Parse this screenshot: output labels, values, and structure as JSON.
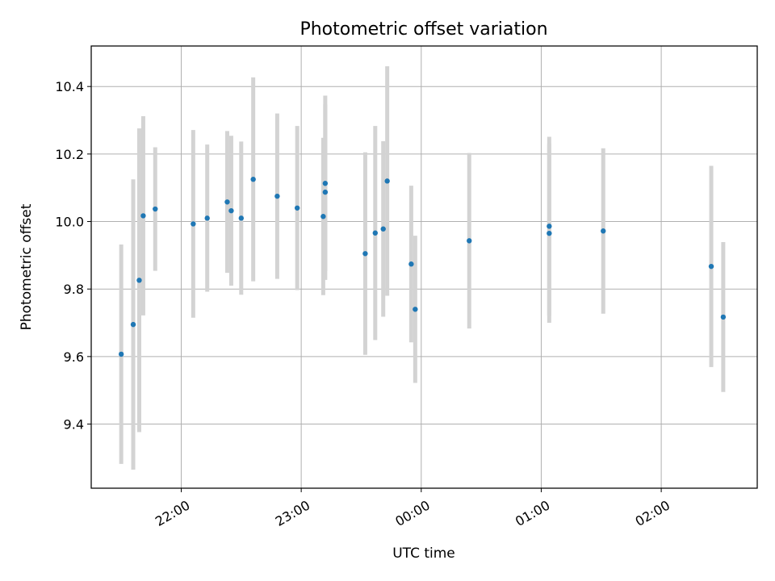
{
  "chart_data": {
    "type": "scatter",
    "title": "Photometric offset variation",
    "xlabel": "UTC time",
    "ylabel": "Photometric offset",
    "x_axis": "time",
    "xlim": [
      "21:15",
      "02:48"
    ],
    "ylim": [
      9.21,
      10.52
    ],
    "xticks": [
      "22:00",
      "23:00",
      "00:00",
      "01:00",
      "02:00"
    ],
    "yticks": [
      "9.4",
      "9.6",
      "9.8",
      "10.0",
      "10.2",
      "10.4"
    ],
    "grid": true,
    "colors": {
      "point": "#1f77b4",
      "errorbar": "#d3d3d3",
      "grid": "#b0b0b0"
    },
    "points": [
      {
        "x": "21:30",
        "y": 9.607,
        "err": 0.325
      },
      {
        "x": "21:36",
        "y": 9.695,
        "err": 0.43
      },
      {
        "x": "21:39",
        "y": 9.826,
        "err": 0.45
      },
      {
        "x": "21:41",
        "y": 10.017,
        "err": 0.295
      },
      {
        "x": "21:47",
        "y": 10.037,
        "err": 0.183
      },
      {
        "x": "22:06",
        "y": 9.993,
        "err": 0.278
      },
      {
        "x": "22:13",
        "y": 10.01,
        "err": 0.218
      },
      {
        "x": "22:23",
        "y": 10.058,
        "err": 0.21
      },
      {
        "x": "22:25",
        "y": 10.032,
        "err": 0.222
      },
      {
        "x": "22:30",
        "y": 10.01,
        "err": 0.227
      },
      {
        "x": "22:36",
        "y": 10.125,
        "err": 0.302
      },
      {
        "x": "22:48",
        "y": 10.075,
        "err": 0.245
      },
      {
        "x": "22:58",
        "y": 10.04,
        "err": 0.243
      },
      {
        "x": "23:11",
        "y": 10.015,
        "err": 0.233
      },
      {
        "x": "23:12",
        "y": 10.087,
        "err": 0.26
      },
      {
        "x": "23:12",
        "y": 10.113,
        "err": 0.26
      },
      {
        "x": "23:32",
        "y": 9.905,
        "err": 0.3
      },
      {
        "x": "23:37",
        "y": 9.966,
        "err": 0.317
      },
      {
        "x": "23:41",
        "y": 9.978,
        "err": 0.26
      },
      {
        "x": "23:43",
        "y": 10.12,
        "err": 0.34
      },
      {
        "x": "23:55",
        "y": 9.874,
        "err": 0.232
      },
      {
        "x": "23:57",
        "y": 9.74,
        "err": 0.218
      },
      {
        "x": "00:24",
        "y": 9.943,
        "err": 0.26
      },
      {
        "x": "01:04",
        "y": 9.986,
        "err": 0.265
      },
      {
        "x": "01:04",
        "y": 9.965,
        "err": 0.265
      },
      {
        "x": "01:31",
        "y": 9.972,
        "err": 0.245
      },
      {
        "x": "02:25",
        "y": 9.867,
        "err": 0.298
      },
      {
        "x": "02:31",
        "y": 9.717,
        "err": 0.222
      }
    ]
  }
}
